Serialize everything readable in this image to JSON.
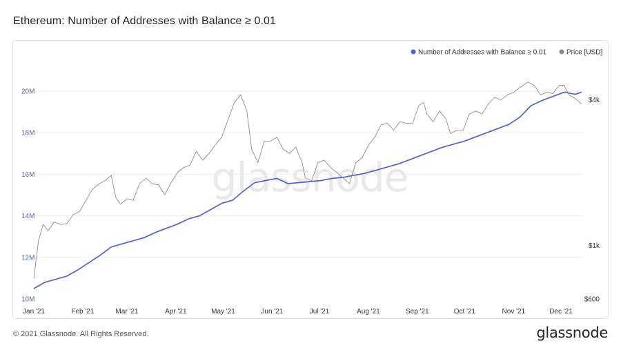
{
  "title": "Ethereum: Number of Addresses with Balance ≥ 0.01",
  "footer": {
    "copyright": "© 2021 Glassnode. All Rights Reserved.",
    "logo": "glassnode"
  },
  "watermark": "glassnode",
  "colors": {
    "addresses": "#4a63d8",
    "price": "#8c8c8c",
    "grid": "#eeeeee",
    "left_axis_text": "#4a63c9"
  },
  "chart_data": {
    "type": "line",
    "legend_position": "top-right",
    "grid": true,
    "x_ticks": [
      "Jan '21",
      "Feb '21",
      "Mar '21",
      "Apr '21",
      "May '21",
      "Jun '21",
      "Jul '21",
      "Aug '21",
      "Sep '21",
      "Oct '21",
      "Nov '21",
      "Dec '21"
    ],
    "y_left": {
      "ticks": [
        "10M",
        "12M",
        "14M",
        "16M",
        "18M",
        "20M"
      ],
      "range": [
        10000000,
        20500000
      ]
    },
    "y_right": {
      "ticks": [
        "$600",
        "$1k",
        "$4k"
      ],
      "scale": "log",
      "range": [
        600,
        4800
      ]
    },
    "series": [
      {
        "name": "Number of Addresses with Balance ≥ 0.01",
        "axis": "left",
        "x": [
          "2021-01-01",
          "2021-01-08",
          "2021-01-15",
          "2021-01-22",
          "2021-01-29",
          "2021-02-05",
          "2021-02-12",
          "2021-02-19",
          "2021-02-26",
          "2021-03-05",
          "2021-03-12",
          "2021-03-19",
          "2021-03-26",
          "2021-04-02",
          "2021-04-09",
          "2021-04-16",
          "2021-04-23",
          "2021-04-30",
          "2021-05-07",
          "2021-05-14",
          "2021-05-21",
          "2021-05-28",
          "2021-06-04",
          "2021-06-11",
          "2021-06-18",
          "2021-06-25",
          "2021-07-02",
          "2021-07-09",
          "2021-07-16",
          "2021-07-23",
          "2021-07-30",
          "2021-08-06",
          "2021-08-13",
          "2021-08-20",
          "2021-08-27",
          "2021-09-03",
          "2021-09-10",
          "2021-09-17",
          "2021-09-24",
          "2021-10-01",
          "2021-10-08",
          "2021-10-15",
          "2021-10-22",
          "2021-10-29",
          "2021-11-05",
          "2021-11-12",
          "2021-11-19",
          "2021-11-26",
          "2021-12-03",
          "2021-12-10",
          "2021-12-14"
        ],
        "values": [
          10.5,
          10.8,
          10.95,
          11.1,
          11.4,
          11.75,
          12.1,
          12.5,
          12.65,
          12.8,
          12.95,
          13.2,
          13.4,
          13.6,
          13.85,
          14.0,
          14.3,
          14.6,
          14.75,
          15.2,
          15.6,
          15.7,
          15.8,
          15.55,
          15.6,
          15.65,
          15.7,
          15.8,
          15.85,
          15.95,
          16.05,
          16.2,
          16.35,
          16.5,
          16.7,
          16.9,
          17.1,
          17.3,
          17.45,
          17.6,
          17.8,
          18.0,
          18.2,
          18.4,
          18.75,
          19.3,
          19.55,
          19.75,
          19.95,
          19.85,
          19.95
        ]
      },
      {
        "name": "Price [USD]",
        "axis": "right",
        "x": [
          "2021-01-01",
          "2021-01-04",
          "2021-01-07",
          "2021-01-10",
          "2021-01-14",
          "2021-01-18",
          "2021-01-22",
          "2021-01-26",
          "2021-01-30",
          "2021-02-03",
          "2021-02-07",
          "2021-02-11",
          "2021-02-15",
          "2021-02-19",
          "2021-02-22",
          "2021-02-25",
          "2021-03-01",
          "2021-03-05",
          "2021-03-09",
          "2021-03-13",
          "2021-03-17",
          "2021-03-21",
          "2021-03-25",
          "2021-03-29",
          "2021-04-02",
          "2021-04-06",
          "2021-04-10",
          "2021-04-14",
          "2021-04-18",
          "2021-04-22",
          "2021-04-26",
          "2021-04-30",
          "2021-05-04",
          "2021-05-08",
          "2021-05-12",
          "2021-05-16",
          "2021-05-19",
          "2021-05-23",
          "2021-05-27",
          "2021-05-31",
          "2021-06-04",
          "2021-06-08",
          "2021-06-12",
          "2021-06-16",
          "2021-06-20",
          "2021-06-22",
          "2021-06-26",
          "2021-06-30",
          "2021-07-04",
          "2021-07-08",
          "2021-07-12",
          "2021-07-16",
          "2021-07-20",
          "2021-07-24",
          "2021-07-28",
          "2021-08-01",
          "2021-08-05",
          "2021-08-09",
          "2021-08-13",
          "2021-08-17",
          "2021-08-21",
          "2021-08-25",
          "2021-08-29",
          "2021-09-02",
          "2021-09-05",
          "2021-09-07",
          "2021-09-11",
          "2021-09-15",
          "2021-09-19",
          "2021-09-22",
          "2021-09-26",
          "2021-09-30",
          "2021-10-04",
          "2021-10-08",
          "2021-10-12",
          "2021-10-16",
          "2021-10-20",
          "2021-10-24",
          "2021-10-28",
          "2021-11-01",
          "2021-11-05",
          "2021-11-10",
          "2021-11-14",
          "2021-11-18",
          "2021-11-22",
          "2021-11-26",
          "2021-11-30",
          "2021-12-03",
          "2021-12-06",
          "2021-12-10",
          "2021-12-14"
        ],
        "values": [
          730,
          1050,
          1220,
          1150,
          1250,
          1220,
          1230,
          1340,
          1380,
          1530,
          1700,
          1790,
          1850,
          1950,
          1580,
          1480,
          1560,
          1540,
          1800,
          1900,
          1800,
          1780,
          1620,
          1820,
          2000,
          2100,
          2150,
          2450,
          2250,
          2400,
          2600,
          2800,
          3300,
          3900,
          4200,
          3600,
          2500,
          2200,
          2700,
          2700,
          2800,
          2500,
          2400,
          2550,
          2200,
          1900,
          1850,
          2200,
          2250,
          2100,
          2000,
          1900,
          1800,
          2200,
          2300,
          2600,
          2800,
          3150,
          3200,
          3000,
          3250,
          3200,
          3200,
          3800,
          3900,
          3500,
          3250,
          3600,
          3350,
          2900,
          3000,
          3000,
          3500,
          3600,
          3500,
          3850,
          4100,
          4000,
          4200,
          4300,
          4500,
          4750,
          4600,
          4200,
          4300,
          4250,
          4600,
          4600,
          4200,
          4050,
          3850
        ]
      }
    ]
  }
}
